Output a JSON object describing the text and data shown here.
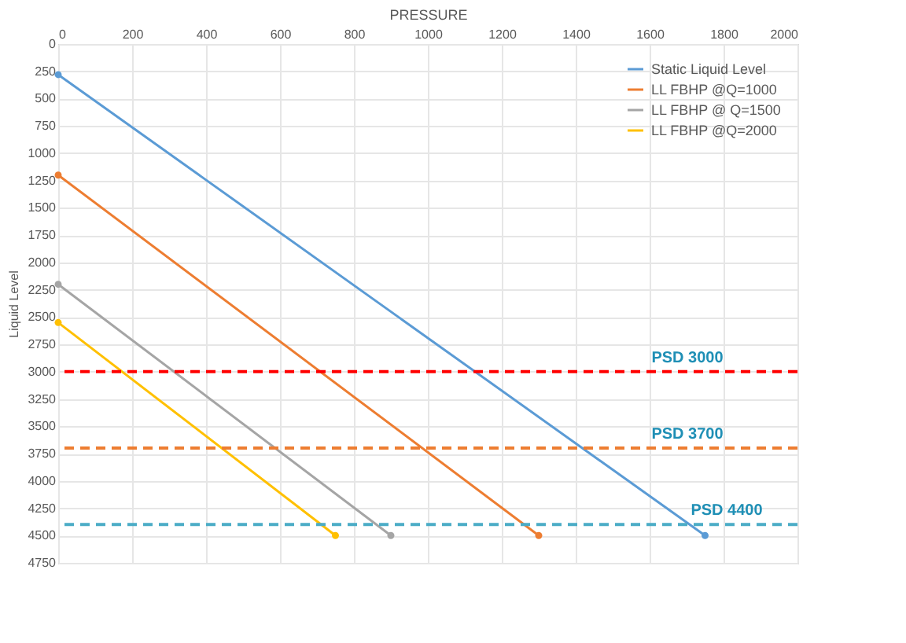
{
  "chart_data": {
    "type": "line",
    "xlabel": "PRESSURE",
    "ylabel": "Liquid Level",
    "xlim": [
      0,
      2000
    ],
    "xticks": [
      0,
      200,
      400,
      600,
      800,
      1000,
      1200,
      1400,
      1600,
      1800,
      2000
    ],
    "ylim": [
      4750,
      0
    ],
    "yticks": [
      0,
      250,
      500,
      750,
      1000,
      1250,
      1500,
      1750,
      2000,
      2250,
      2500,
      2750,
      3000,
      3250,
      3500,
      3750,
      4000,
      4250,
      4500,
      4750
    ],
    "series": [
      {
        "name": "Static Liquid Level",
        "color": "#5b9bd5",
        "x": [
          0,
          1750
        ],
        "values": [
          280,
          4500
        ]
      },
      {
        "name": "LL FBHP @Q=1000",
        "color": "#ed7d31",
        "x": [
          0,
          1300
        ],
        "values": [
          1200,
          4500
        ]
      },
      {
        "name": "LL FBHP @ Q=1500",
        "color": "#a5a5a5",
        "x": [
          0,
          900
        ],
        "values": [
          2200,
          4500
        ]
      },
      {
        "name": "LL FBHP @Q=2000",
        "color": "#ffc000",
        "x": [
          0,
          750
        ],
        "values": [
          2550,
          4500
        ]
      }
    ],
    "ref_lines": [
      {
        "axis": "y",
        "value": 3000,
        "label": "PSD 3000",
        "color": "#ff0000",
        "line_style": "dashed"
      },
      {
        "axis": "y",
        "value": 3700,
        "label": "PSD 3700",
        "color": "#ed7d31",
        "line_style": "dashed"
      },
      {
        "axis": "y",
        "value": 4400,
        "label": "PSD 4400",
        "color": "#4bacc6",
        "line_style": "dashed"
      }
    ],
    "marker": "circle",
    "grid": true,
    "legend": "top right"
  }
}
